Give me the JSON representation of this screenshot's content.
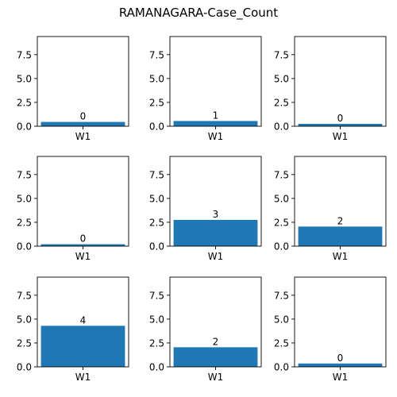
{
  "figure": {
    "title": "RAMANAGARA-Case_Count"
  },
  "chart_data": [
    {
      "type": "bar",
      "categories": [
        "W1"
      ],
      "values": [
        0.45
      ],
      "data_labels": [
        "0"
      ],
      "ylim": [
        0,
        9.4
      ],
      "yticks": [
        "0.0",
        "2.5",
        "5.0",
        "7.5"
      ],
      "ytick_values": [
        0,
        2.5,
        5.0,
        7.5
      ],
      "color": "#1f77b4",
      "grid": false
    },
    {
      "type": "bar",
      "categories": [
        "W1"
      ],
      "values": [
        0.55
      ],
      "data_labels": [
        "1"
      ],
      "ylim": [
        0,
        9.4
      ],
      "yticks": [
        "0.0",
        "2.5",
        "5.0",
        "7.5"
      ],
      "ytick_values": [
        0,
        2.5,
        5.0,
        7.5
      ],
      "color": "#1f77b4",
      "grid": false
    },
    {
      "type": "bar",
      "categories": [
        "W1"
      ],
      "values": [
        0.25
      ],
      "data_labels": [
        "0"
      ],
      "ylim": [
        0,
        9.4
      ],
      "yticks": [
        "0.0",
        "2.5",
        "5.0",
        "7.5"
      ],
      "ytick_values": [
        0,
        2.5,
        5.0,
        7.5
      ],
      "color": "#1f77b4",
      "grid": false
    },
    {
      "type": "bar",
      "categories": [
        "W1"
      ],
      "values": [
        0.2
      ],
      "data_labels": [
        "0"
      ],
      "ylim": [
        0,
        9.4
      ],
      "yticks": [
        "0.0",
        "2.5",
        "5.0",
        "7.5"
      ],
      "ytick_values": [
        0,
        2.5,
        5.0,
        7.5
      ],
      "color": "#1f77b4",
      "grid": false
    },
    {
      "type": "bar",
      "categories": [
        "W1"
      ],
      "values": [
        2.75
      ],
      "data_labels": [
        "3"
      ],
      "ylim": [
        0,
        9.4
      ],
      "yticks": [
        "0.0",
        "2.5",
        "5.0",
        "7.5"
      ],
      "ytick_values": [
        0,
        2.5,
        5.0,
        7.5
      ],
      "color": "#1f77b4",
      "grid": false
    },
    {
      "type": "bar",
      "categories": [
        "W1"
      ],
      "values": [
        2.05
      ],
      "data_labels": [
        "2"
      ],
      "ylim": [
        0,
        9.4
      ],
      "yticks": [
        "0.0",
        "2.5",
        "5.0",
        "7.5"
      ],
      "ytick_values": [
        0,
        2.5,
        5.0,
        7.5
      ],
      "color": "#1f77b4",
      "grid": false
    },
    {
      "type": "bar",
      "categories": [
        "W1"
      ],
      "values": [
        4.3
      ],
      "data_labels": [
        "4"
      ],
      "ylim": [
        0,
        9.4
      ],
      "yticks": [
        "0.0",
        "2.5",
        "5.0",
        "7.5"
      ],
      "ytick_values": [
        0,
        2.5,
        5.0,
        7.5
      ],
      "color": "#1f77b4",
      "grid": false
    },
    {
      "type": "bar",
      "categories": [
        "W1"
      ],
      "values": [
        2.05
      ],
      "data_labels": [
        "2"
      ],
      "ylim": [
        0,
        9.4
      ],
      "yticks": [
        "0.0",
        "2.5",
        "5.0",
        "7.5"
      ],
      "ytick_values": [
        0,
        2.5,
        5.0,
        7.5
      ],
      "color": "#1f77b4",
      "grid": false
    },
    {
      "type": "bar",
      "categories": [
        "W1"
      ],
      "values": [
        0.35
      ],
      "data_labels": [
        "0"
      ],
      "ylim": [
        0,
        9.4
      ],
      "yticks": [
        "0.0",
        "2.5",
        "5.0",
        "7.5"
      ],
      "ytick_values": [
        0,
        2.5,
        5.0,
        7.5
      ],
      "color": "#1f77b4",
      "grid": false
    }
  ]
}
